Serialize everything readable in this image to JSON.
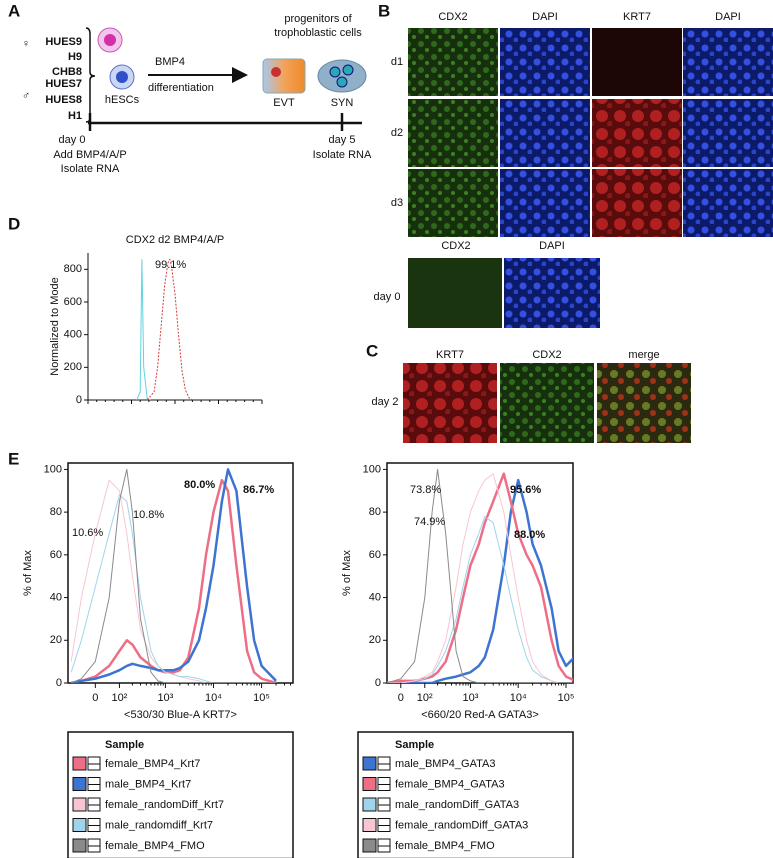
{
  "panel_labels": [
    "A",
    "B",
    "C",
    "D",
    "E"
  ],
  "panel_a": {
    "female_symbol": "♀",
    "male_symbol": "♂",
    "female_lines": [
      "HUES9",
      "H9",
      "CHB8"
    ],
    "male_lines": [
      "HUES7",
      "HUES8",
      "H1"
    ],
    "cell_label": "hESCs",
    "treatment": "BMP4",
    "process": "differentiation",
    "outcome": [
      "progenitors of",
      "trophoblastic cells"
    ],
    "cell_types": [
      "EVT",
      "SYN"
    ],
    "start": {
      "day": "day 0",
      "steps": [
        "Add BMP4/A/P",
        "Isolate RNA"
      ]
    },
    "end": {
      "day": "day 5",
      "steps": [
        "Isolate RNA"
      ]
    }
  },
  "panel_b": {
    "columns": [
      "CDX2",
      "DAPI",
      "KRT7",
      "DAPI"
    ],
    "rows": [
      "d1",
      "d2",
      "d3"
    ],
    "day0_columns": [
      "CDX2",
      "DAPI"
    ],
    "day0_row": "day 0"
  },
  "panel_c": {
    "columns": [
      "KRT7",
      "CDX2",
      "merge"
    ],
    "row": "day 2"
  },
  "chart_data": [
    {
      "type": "line",
      "title": "CDX2 d2 BMP4/A/P",
      "ylabel": "Normalized to Mode",
      "xlim": [
        0,
        5
      ],
      "ylim": [
        0,
        900
      ],
      "yticks": [
        0,
        200,
        400,
        600,
        800
      ],
      "annotations": [
        {
          "text": "99.1%",
          "color": "#d63a3a",
          "bold": false
        }
      ],
      "series": [
        {
          "color": "#5fd3e0",
          "linewidth": 1,
          "dashed": false,
          "x": [
            1.4,
            1.5,
            1.55,
            1.6,
            1.7,
            1.8
          ],
          "values": [
            0,
            50,
            860,
            200,
            10,
            0
          ]
        },
        {
          "color": "#d63a3a",
          "linewidth": 1,
          "dashed": true,
          "x": [
            1.7,
            1.9,
            2.0,
            2.1,
            2.2,
            2.3,
            2.35,
            2.4,
            2.5,
            2.6,
            2.7,
            2.8,
            2.9,
            3.0
          ],
          "values": [
            0,
            50,
            200,
            450,
            700,
            840,
            860,
            820,
            650,
            400,
            180,
            60,
            15,
            0
          ]
        }
      ]
    },
    {
      "type": "line",
      "xlabel": "<530/30 Blue-A KRT7>",
      "ylabel": "% of Max",
      "xscale": "biexponential",
      "xlim": [
        -120,
        450000
      ],
      "ylim": [
        0,
        103
      ],
      "xticks": [
        0,
        {
          "value": 100,
          "label": "10²"
        },
        {
          "value": 1000,
          "label": "10³"
        },
        {
          "value": 10000,
          "label": "10⁴"
        },
        {
          "value": 100000,
          "label": "10⁵"
        }
      ],
      "yticks": [
        0,
        20,
        40,
        60,
        80,
        100
      ],
      "x": [
        -100,
        -50,
        0,
        50,
        100,
        150,
        200,
        300,
        500,
        700,
        1000,
        1500,
        2000,
        3000,
        5000,
        7000,
        10000,
        15000,
        20000,
        30000,
        50000,
        70000,
        100000,
        200000
      ],
      "legend_title": "Sample",
      "annotations": [
        {
          "text": "10.6%",
          "color": "#e889a6",
          "bold": false
        },
        {
          "text": "10.8%",
          "color": "#7cc3e4",
          "bold": false
        },
        {
          "text": "80.0%",
          "color": "#e0359a",
          "bold": true
        },
        {
          "text": "86.7%",
          "color": "#3a6fc8",
          "bold": true
        }
      ],
      "series": [
        {
          "name": "female_BMP4_Krt7",
          "color": "#ee6e86",
          "linewidth": 2.5,
          "values": [
            0,
            1,
            3,
            8,
            15,
            20,
            18,
            12,
            8,
            6,
            5,
            5,
            6,
            12,
            35,
            60,
            80,
            95,
            90,
            55,
            15,
            5,
            2,
            0
          ]
        },
        {
          "name": "male_BMP4_Krt7",
          "color": "#3d74d1",
          "linewidth": 2.5,
          "values": [
            0,
            1,
            2,
            4,
            6,
            8,
            9,
            8,
            7,
            6,
            6,
            6,
            7,
            10,
            20,
            35,
            55,
            85,
            100,
            90,
            45,
            20,
            8,
            1
          ]
        },
        {
          "name": "female_randomDiff_Krt7",
          "color": "#f7c6d2",
          "linewidth": 1,
          "values": [
            10,
            40,
            70,
            95,
            90,
            70,
            50,
            25,
            12,
            8,
            5,
            4,
            3,
            2,
            1,
            0,
            0,
            0,
            0,
            0,
            0,
            0,
            0,
            0
          ]
        },
        {
          "name": "male_randomdiff_Krt7",
          "color": "#9fd4ec",
          "linewidth": 1,
          "values": [
            5,
            20,
            45,
            70,
            88,
            85,
            70,
            40,
            15,
            8,
            5,
            4,
            3,
            3,
            2,
            1,
            0,
            0,
            0,
            0,
            0,
            0,
            0,
            0
          ]
        },
        {
          "name": "female_BMP4_FMO",
          "color": "#8a8a8a",
          "linewidth": 1,
          "values": [
            0,
            2,
            10,
            40,
            85,
            100,
            80,
            30,
            5,
            1,
            0,
            0,
            0,
            0,
            0,
            0,
            0,
            0,
            0,
            0,
            0,
            0,
            0,
            0
          ]
        }
      ]
    },
    {
      "type": "line",
      "xlabel": "<660/20 Red-A GATA3>",
      "ylabel": "% of Max",
      "xscale": "biexponential",
      "xlim": [
        -50,
        140000
      ],
      "ylim": [
        0,
        103
      ],
      "xticks": [
        0,
        {
          "value": 100,
          "label": "10²"
        },
        {
          "value": 1000,
          "label": "10³"
        },
        {
          "value": 10000,
          "label": "10⁴"
        },
        {
          "value": 100000,
          "label": "10⁵"
        }
      ],
      "yticks": [
        0,
        20,
        40,
        60,
        80,
        100
      ],
      "x": [
        -100,
        -50,
        0,
        50,
        100,
        150,
        200,
        300,
        500,
        700,
        1000,
        1500,
        2000,
        3000,
        5000,
        7000,
        10000,
        15000,
        20000,
        30000,
        50000,
        70000,
        100000,
        200000
      ],
      "legend_title": "Sample",
      "annotations": [
        {
          "text": "73.8%",
          "color": "#e889a6",
          "bold": false
        },
        {
          "text": "74.9%",
          "color": "#7cc3e4",
          "bold": false
        },
        {
          "text": "95.6%",
          "color": "#3a6fc8",
          "bold": true
        },
        {
          "text": "88.0%",
          "color": "#e0359a",
          "bold": true
        }
      ],
      "series": [
        {
          "name": "male_BMP4_GATA3",
          "color": "#3d74d1",
          "linewidth": 2.5,
          "values": [
            0,
            0,
            0,
            0,
            0,
            0,
            1,
            2,
            3,
            4,
            5,
            8,
            12,
            25,
            55,
            80,
            95,
            80,
            65,
            55,
            35,
            15,
            8,
            15
          ]
        },
        {
          "name": "female_BMP4_GATA3",
          "color": "#ee6e86",
          "linewidth": 2.5,
          "values": [
            0,
            0,
            1,
            1,
            2,
            3,
            5,
            10,
            25,
            40,
            55,
            65,
            75,
            85,
            98,
            85,
            70,
            60,
            55,
            45,
            20,
            8,
            3,
            0
          ]
        },
        {
          "name": "male_randomDiff_GATA3",
          "color": "#9fd4ec",
          "linewidth": 1,
          "values": [
            0,
            0,
            0,
            1,
            2,
            4,
            8,
            15,
            30,
            45,
            60,
            70,
            78,
            75,
            55,
            40,
            25,
            12,
            6,
            3,
            1,
            0,
            0,
            0
          ]
        },
        {
          "name": "female_randomDiff_GATA3",
          "color": "#f7c6d2",
          "linewidth": 1,
          "values": [
            0,
            0,
            0,
            1,
            3,
            5,
            10,
            20,
            45,
            65,
            80,
            90,
            95,
            98,
            80,
            60,
            40,
            20,
            10,
            4,
            1,
            0,
            0,
            0
          ]
        },
        {
          "name": "female_BMP4_FMO",
          "color": "#8a8a8a",
          "linewidth": 1,
          "values": [
            0,
            0,
            2,
            10,
            40,
            80,
            100,
            70,
            15,
            3,
            1,
            0,
            0,
            0,
            0,
            0,
            0,
            0,
            0,
            0,
            0,
            0,
            0,
            0
          ]
        }
      ]
    }
  ]
}
